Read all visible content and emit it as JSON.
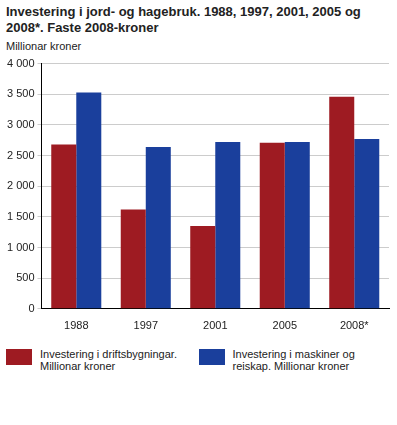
{
  "chart_data": {
    "type": "bar",
    "title": "Investering i jord- og hagebruk. 1988, 1997, 2001, 2005 og 2008*. Faste 2008-kroner",
    "y_label": "Millionar kroner",
    "categories": [
      "1988",
      "1997",
      "2001",
      "2005",
      "2008*"
    ],
    "series": [
      {
        "name": "Investering i driftsbygningar. Millionar kroner",
        "color": "#9e1b22",
        "values": [
          2680,
          1620,
          1350,
          2710,
          3460
        ]
      },
      {
        "name": "Investering i maskiner og reiskap. Millionar kroner",
        "color": "#1a3f9c",
        "values": [
          3530,
          2640,
          2720,
          2720,
          2770
        ]
      }
    ],
    "ylim": [
      0,
      4000
    ],
    "yticks": [
      0,
      500,
      {
        "value": 1000,
        "label": "1 000"
      },
      {
        "value": 1500,
        "label": "1 500"
      },
      {
        "value": 2000,
        "label": "2 000"
      },
      {
        "value": 2500,
        "label": "2 500"
      },
      {
        "value": 3000,
        "label": "3 000"
      },
      {
        "value": 3500,
        "label": "3 500"
      },
      {
        "value": 4000,
        "label": "4 000"
      }
    ],
    "grid": true,
    "legend": "bottom"
  }
}
